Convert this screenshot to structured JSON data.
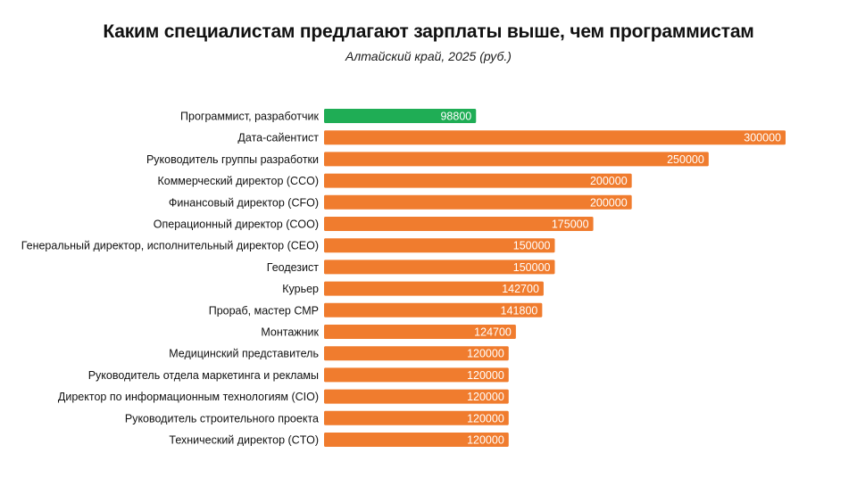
{
  "chart_data": {
    "type": "bar",
    "orientation": "horizontal",
    "title": "Каким специалистам предлагают зарплаты выше, чем программистам",
    "subtitle": "Алтайский край, 2025 (руб.)",
    "xlabel": "",
    "ylabel": "",
    "xlim": [
      0,
      300000
    ],
    "grid": false,
    "legend": "none",
    "highlight_color": "#1fad55",
    "bar_color": "#f07c2e",
    "categories": [
      "Программист, разработчик",
      "Дата-сайентист",
      "Руководитель группы разработки",
      "Коммерческий директор (CCO)",
      "Финансовый директор (CFO)",
      "Операционный директор (COO)",
      "Генеральный директор, исполнительный директор (CEO)",
      "Геодезист",
      "Курьер",
      "Прораб, мастер СМР",
      "Монтажник",
      "Медицинский представитель",
      "Руководитель отдела маркетинга и рекламы",
      "Директор по информационным технологиям (CIO)",
      "Руководитель строительного проекта",
      "Технический директор (CTO)"
    ],
    "values": [
      98800,
      300000,
      250000,
      200000,
      200000,
      175000,
      150000,
      150000,
      142700,
      141800,
      124700,
      120000,
      120000,
      120000,
      120000,
      120000
    ],
    "highlight_index": 0
  }
}
